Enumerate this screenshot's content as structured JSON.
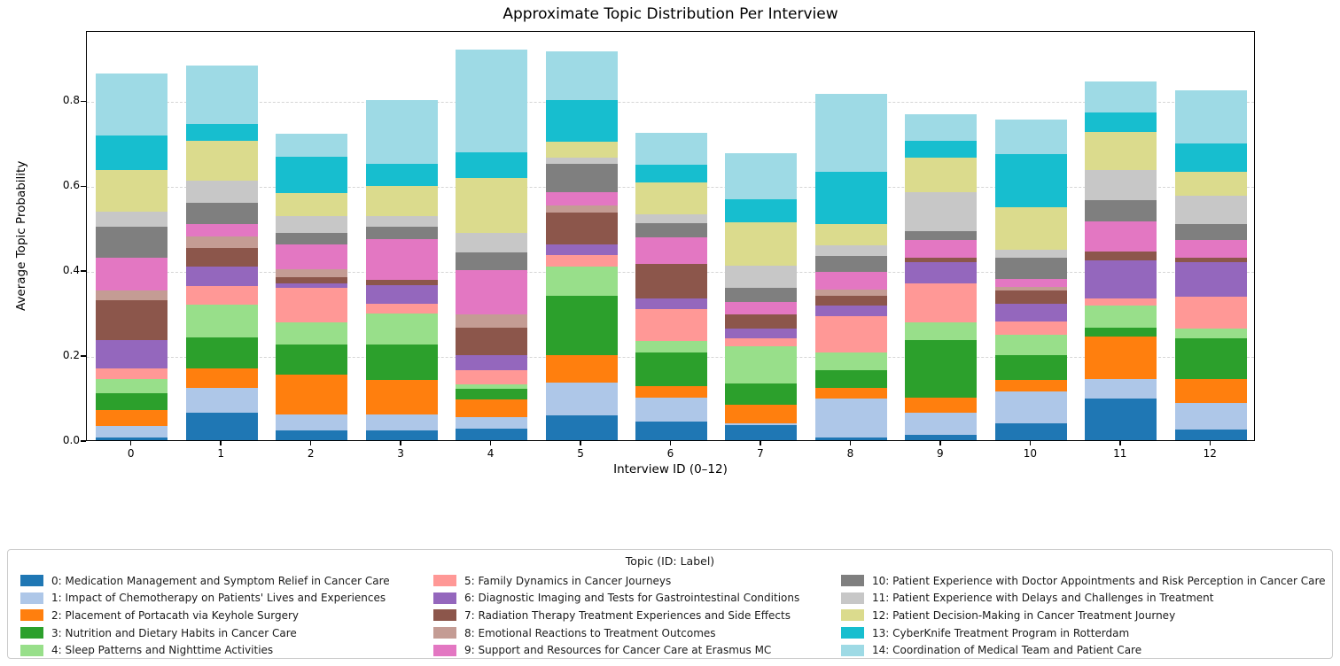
{
  "chart_data": {
    "type": "stacked_bar",
    "title": "Approximate Topic Distribution Per Interview",
    "xlabel": "Interview ID (0–12)",
    "ylabel": "Average Topic Probability",
    "legend_title": "Topic (ID: Label)",
    "categories": [
      "0",
      "1",
      "2",
      "3",
      "4",
      "5",
      "6",
      "7",
      "8",
      "9",
      "10",
      "11",
      "12"
    ],
    "yticks": [
      0.0,
      0.2,
      0.4,
      0.6,
      0.8
    ],
    "ylim": [
      0,
      0.965
    ],
    "grid": "horizontal dashed at yticks",
    "legend_position": "below plot, 3 columns, column-major",
    "bar_totals": [
      0.864,
      0.883,
      0.722,
      0.802,
      0.921,
      0.915,
      0.724,
      0.676,
      0.816,
      0.767,
      0.755,
      0.845,
      0.825
    ],
    "series": [
      {
        "id": 0,
        "label": "Medication Management and Symptom Relief in Cancer Care",
        "color": "#1f77b4",
        "values": [
          0.007,
          0.065,
          0.022,
          0.022,
          0.028,
          0.058,
          0.044,
          0.035,
          0.007,
          0.013,
          0.04,
          0.099,
          0.026
        ]
      },
      {
        "id": 1,
        "label": "Impact of Chemotherapy on Patients' Lives and Experiences",
        "color": "#aec7e8",
        "values": [
          0.026,
          0.058,
          0.039,
          0.039,
          0.026,
          0.078,
          0.057,
          0.005,
          0.092,
          0.052,
          0.075,
          0.044,
          0.061
        ]
      },
      {
        "id": 2,
        "label": "Placement of Portacath via Keyhole Surgery",
        "color": "#ff7f0e",
        "values": [
          0.038,
          0.045,
          0.093,
          0.08,
          0.043,
          0.064,
          0.026,
          0.043,
          0.025,
          0.035,
          0.026,
          0.101,
          0.057
        ]
      },
      {
        "id": 3,
        "label": "Nutrition and Dietary Habits in Cancer Care",
        "color": "#2ca02c",
        "values": [
          0.04,
          0.073,
          0.072,
          0.085,
          0.025,
          0.139,
          0.08,
          0.051,
          0.041,
          0.135,
          0.059,
          0.02,
          0.095
        ]
      },
      {
        "id": 4,
        "label": "Sleep Patterns and Nighttime Activities",
        "color": "#98df8a",
        "values": [
          0.033,
          0.078,
          0.052,
          0.072,
          0.01,
          0.069,
          0.026,
          0.088,
          0.042,
          0.043,
          0.049,
          0.054,
          0.023
        ]
      },
      {
        "id": 5,
        "label": "Family Dynamics in Cancer Journeys",
        "color": "#ff9896",
        "values": [
          0.025,
          0.043,
          0.08,
          0.023,
          0.032,
          0.029,
          0.076,
          0.018,
          0.085,
          0.092,
          0.031,
          0.015,
          0.077
        ]
      },
      {
        "id": 6,
        "label": "Diagnostic Imaging and Tests for Gastrointestinal Conditions",
        "color": "#9467bd",
        "values": [
          0.066,
          0.047,
          0.012,
          0.044,
          0.037,
          0.025,
          0.024,
          0.022,
          0.025,
          0.049,
          0.042,
          0.09,
          0.08
        ]
      },
      {
        "id": 7,
        "label": "Radiation Therapy Treatment Experiences and Side Effects",
        "color": "#8c564b",
        "values": [
          0.094,
          0.044,
          0.014,
          0.013,
          0.063,
          0.074,
          0.082,
          0.035,
          0.023,
          0.01,
          0.03,
          0.021,
          0.01
        ]
      },
      {
        "id": 8,
        "label": "Emotional Reactions to Treatment Outcomes",
        "color": "#c49c94",
        "values": [
          0.023,
          0.026,
          0.019,
          0.0,
          0.033,
          0.016,
          0.0,
          0.0,
          0.014,
          0.0,
          0.01,
          0.0,
          0.0
        ]
      },
      {
        "id": 9,
        "label": "Support and Resources for Cancer Care at Erasmus MC",
        "color": "#e377c2",
        "values": [
          0.078,
          0.031,
          0.059,
          0.095,
          0.103,
          0.033,
          0.063,
          0.029,
          0.042,
          0.042,
          0.018,
          0.072,
          0.042
        ]
      },
      {
        "id": 10,
        "label": "Patient Experience with Doctor Appointments and Risk Perception in Cancer Care",
        "color": "#7f7f7f",
        "values": [
          0.072,
          0.05,
          0.026,
          0.03,
          0.043,
          0.066,
          0.033,
          0.032,
          0.037,
          0.022,
          0.049,
          0.049,
          0.038
        ]
      },
      {
        "id": 11,
        "label": "Patient Experience with Delays and Challenges in Treatment",
        "color": "#c7c7c7",
        "values": [
          0.037,
          0.052,
          0.04,
          0.024,
          0.046,
          0.015,
          0.022,
          0.054,
          0.026,
          0.092,
          0.019,
          0.072,
          0.066
        ]
      },
      {
        "id": 12,
        "label": "Patient Decision-Making in Cancer Treatment Journey",
        "color": "#dbdb8d",
        "values": [
          0.098,
          0.094,
          0.054,
          0.071,
          0.128,
          0.037,
          0.075,
          0.101,
          0.051,
          0.081,
          0.1,
          0.09,
          0.057
        ]
      },
      {
        "id": 13,
        "label": "CyberKnife Treatment Program in Rotterdam",
        "color": "#17becf",
        "values": [
          0.08,
          0.038,
          0.085,
          0.052,
          0.061,
          0.099,
          0.04,
          0.054,
          0.123,
          0.04,
          0.125,
          0.044,
          0.067
        ]
      },
      {
        "id": 14,
        "label": "Coordination of Medical Team and Patient Care",
        "color": "#9edae5",
        "values": [
          0.147,
          0.139,
          0.055,
          0.152,
          0.243,
          0.113,
          0.076,
          0.109,
          0.183,
          0.061,
          0.082,
          0.074,
          0.126
        ]
      }
    ]
  }
}
